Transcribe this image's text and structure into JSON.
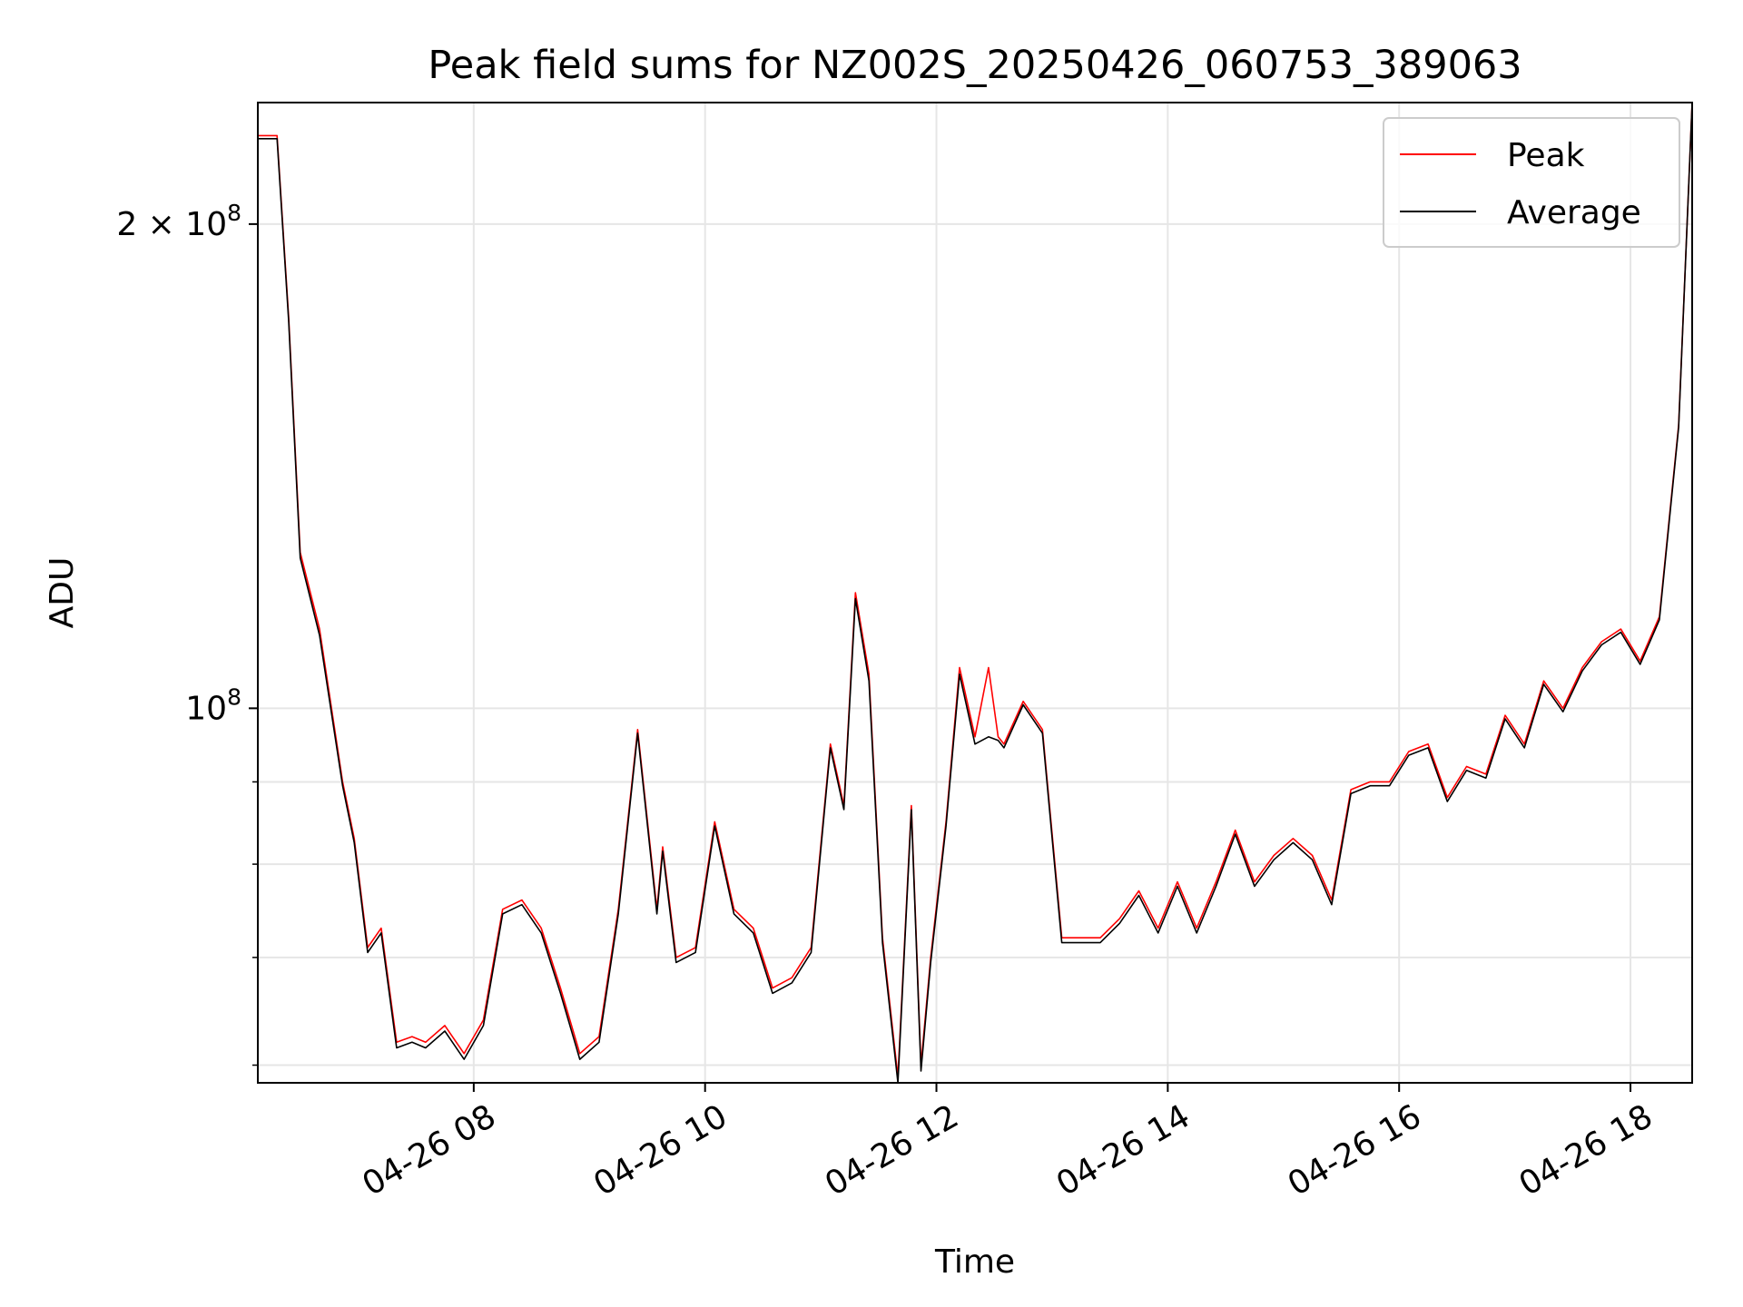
{
  "chart_data": {
    "type": "line",
    "title": "Peak field sums for NZ002S_20250426_060753_389063",
    "xlabel": "Time",
    "ylabel": "ADU",
    "x_axis_type": "time",
    "xlim": [
      "2025-04-26 06:08",
      "2025-04-26 18:32"
    ],
    "ylim": [
      58500000,
      238000000
    ],
    "y_scale": "log",
    "grid": true,
    "legend_position": "top-right",
    "x_ticks": [
      {
        "value": "2025-04-26 08:00",
        "label": "04-26 08"
      },
      {
        "value": "2025-04-26 10:00",
        "label": "04-26 10"
      },
      {
        "value": "2025-04-26 12:00",
        "label": "04-26 12"
      },
      {
        "value": "2025-04-26 14:00",
        "label": "04-26 14"
      },
      {
        "value": "2025-04-26 16:00",
        "label": "04-26 16"
      },
      {
        "value": "2025-04-26 18:00",
        "label": "04-26 18"
      }
    ],
    "y_major_ticks": [
      {
        "value": 100000000,
        "label_base": "10",
        "label_exp": "8"
      },
      {
        "value": 200000000,
        "label_base": "2 × 10",
        "label_exp": "8"
      }
    ],
    "y_minor_ticks": [
      60000000,
      70000000,
      80000000,
      90000000
    ],
    "series": [
      {
        "name": "Peak",
        "color": "#ff0000",
        "x": [
          "2025-04-26 06:08",
          "2025-04-26 06:18",
          "2025-04-26 06:24",
          "2025-04-26 06:30",
          "2025-04-26 06:40",
          "2025-04-26 06:52",
          "2025-04-26 06:58",
          "2025-04-26 07:05",
          "2025-04-26 07:12",
          "2025-04-26 07:20",
          "2025-04-26 07:28",
          "2025-04-26 07:35",
          "2025-04-26 07:45",
          "2025-04-26 07:55",
          "2025-04-26 08:05",
          "2025-04-26 08:15",
          "2025-04-26 08:25",
          "2025-04-26 08:35",
          "2025-04-26 08:45",
          "2025-04-26 08:55",
          "2025-04-26 09:05",
          "2025-04-26 09:15",
          "2025-04-26 09:25",
          "2025-04-26 09:35",
          "2025-04-26 09:38",
          "2025-04-26 09:45",
          "2025-04-26 09:55",
          "2025-04-26 10:05",
          "2025-04-26 10:15",
          "2025-04-26 10:25",
          "2025-04-26 10:35",
          "2025-04-26 10:45",
          "2025-04-26 10:55",
          "2025-04-26 11:05",
          "2025-04-26 11:12",
          "2025-04-26 11:18",
          "2025-04-26 11:25",
          "2025-04-26 11:32",
          "2025-04-26 11:40",
          "2025-04-26 11:47",
          "2025-04-26 11:52",
          "2025-04-26 11:57",
          "2025-04-26 12:05",
          "2025-04-26 12:12",
          "2025-04-26 12:20",
          "2025-04-26 12:27",
          "2025-04-26 12:32",
          "2025-04-26 12:35",
          "2025-04-26 12:45",
          "2025-04-26 12:55",
          "2025-04-26 13:05",
          "2025-04-26 13:15",
          "2025-04-26 13:25",
          "2025-04-26 13:35",
          "2025-04-26 13:45",
          "2025-04-26 13:55",
          "2025-04-26 14:05",
          "2025-04-26 14:15",
          "2025-04-26 14:25",
          "2025-04-26 14:35",
          "2025-04-26 14:45",
          "2025-04-26 14:55",
          "2025-04-26 15:05",
          "2025-04-26 15:15",
          "2025-04-26 15:25",
          "2025-04-26 15:35",
          "2025-04-26 15:45",
          "2025-04-26 15:55",
          "2025-04-26 16:05",
          "2025-04-26 16:15",
          "2025-04-26 16:25",
          "2025-04-26 16:35",
          "2025-04-26 16:45",
          "2025-04-26 16:55",
          "2025-04-26 17:05",
          "2025-04-26 17:15",
          "2025-04-26 17:25",
          "2025-04-26 17:35",
          "2025-04-26 17:45",
          "2025-04-26 17:55",
          "2025-04-26 18:05",
          "2025-04-26 18:15",
          "2025-04-26 18:25",
          "2025-04-26 18:32"
        ],
        "values": [
          227000000,
          227000000,
          175000000,
          125000000,
          112000000,
          90000000,
          83000000,
          71000000,
          73000000,
          62000000,
          62500000,
          62000000,
          63500000,
          61000000,
          64000000,
          75000000,
          76000000,
          73000000,
          67000000,
          61000000,
          62500000,
          75000000,
          97000000,
          75000000,
          82000000,
          70000000,
          71000000,
          85000000,
          75000000,
          73000000,
          67000000,
          68000000,
          71000000,
          95000000,
          87000000,
          118000000,
          105000000,
          72000000,
          59000000,
          87000000,
          60000000,
          70000000,
          85000000,
          106000000,
          96000000,
          106000000,
          96000000,
          95000000,
          101000000,
          97000000,
          72000000,
          72000000,
          72000000,
          74000000,
          77000000,
          73000000,
          78000000,
          73000000,
          78000000,
          84000000,
          78000000,
          81000000,
          83000000,
          81000000,
          76000000,
          89000000,
          90000000,
          90000000,
          94000000,
          95000000,
          88000000,
          92000000,
          91000000,
          99000000,
          95000000,
          104000000,
          100000000,
          106000000,
          110000000,
          112000000,
          107000000,
          114000000,
          150000000,
          238000000
        ]
      },
      {
        "name": "Average",
        "color": "#000000",
        "x": [
          "2025-04-26 06:08",
          "2025-04-26 06:18",
          "2025-04-26 06:24",
          "2025-04-26 06:30",
          "2025-04-26 06:40",
          "2025-04-26 06:52",
          "2025-04-26 06:58",
          "2025-04-26 07:05",
          "2025-04-26 07:12",
          "2025-04-26 07:20",
          "2025-04-26 07:28",
          "2025-04-26 07:35",
          "2025-04-26 07:45",
          "2025-04-26 07:55",
          "2025-04-26 08:05",
          "2025-04-26 08:15",
          "2025-04-26 08:25",
          "2025-04-26 08:35",
          "2025-04-26 08:45",
          "2025-04-26 08:55",
          "2025-04-26 09:05",
          "2025-04-26 09:15",
          "2025-04-26 09:25",
          "2025-04-26 09:35",
          "2025-04-26 09:38",
          "2025-04-26 09:45",
          "2025-04-26 09:55",
          "2025-04-26 10:05",
          "2025-04-26 10:15",
          "2025-04-26 10:25",
          "2025-04-26 10:35",
          "2025-04-26 10:45",
          "2025-04-26 10:55",
          "2025-04-26 11:05",
          "2025-04-26 11:12",
          "2025-04-26 11:18",
          "2025-04-26 11:25",
          "2025-04-26 11:32",
          "2025-04-26 11:40",
          "2025-04-26 11:47",
          "2025-04-26 11:52",
          "2025-04-26 11:57",
          "2025-04-26 12:05",
          "2025-04-26 12:12",
          "2025-04-26 12:20",
          "2025-04-26 12:27",
          "2025-04-26 12:32",
          "2025-04-26 12:35",
          "2025-04-26 12:45",
          "2025-04-26 12:55",
          "2025-04-26 13:05",
          "2025-04-26 13:15",
          "2025-04-26 13:25",
          "2025-04-26 13:35",
          "2025-04-26 13:45",
          "2025-04-26 13:55",
          "2025-04-26 14:05",
          "2025-04-26 14:15",
          "2025-04-26 14:25",
          "2025-04-26 14:35",
          "2025-04-26 14:45",
          "2025-04-26 14:55",
          "2025-04-26 15:05",
          "2025-04-26 15:15",
          "2025-04-26 15:25",
          "2025-04-26 15:35",
          "2025-04-26 15:45",
          "2025-04-26 15:55",
          "2025-04-26 16:05",
          "2025-04-26 16:15",
          "2025-04-26 16:25",
          "2025-04-26 16:35",
          "2025-04-26 16:45",
          "2025-04-26 16:55",
          "2025-04-26 17:05",
          "2025-04-26 17:15",
          "2025-04-26 17:25",
          "2025-04-26 17:35",
          "2025-04-26 17:45",
          "2025-04-26 17:55",
          "2025-04-26 18:05",
          "2025-04-26 18:15",
          "2025-04-26 18:25",
          "2025-04-26 18:32"
        ],
        "values": [
          226000000,
          226000000,
          174000000,
          124000000,
          111000000,
          89500000,
          82500000,
          70500000,
          72500000,
          61500000,
          62000000,
          61500000,
          63000000,
          60500000,
          63500000,
          74500000,
          75500000,
          72500000,
          66500000,
          60500000,
          62000000,
          74500000,
          96500000,
          74500000,
          81500000,
          69500000,
          70500000,
          84500000,
          74500000,
          72500000,
          66500000,
          67500000,
          70500000,
          94500000,
          86500000,
          117000000,
          104000000,
          71500000,
          58500000,
          86500000,
          59500000,
          69500000,
          84500000,
          105000000,
          95000000,
          96000000,
          95500000,
          94500000,
          100500000,
          96500000,
          71500000,
          71500000,
          71500000,
          73500000,
          76500000,
          72500000,
          77500000,
          72500000,
          77500000,
          83500000,
          77500000,
          80500000,
          82500000,
          80500000,
          75500000,
          88500000,
          89500000,
          89500000,
          93500000,
          94500000,
          87500000,
          91500000,
          90500000,
          98500000,
          94500000,
          103500000,
          99500000,
          105500000,
          109500000,
          111500000,
          106500000,
          113500000,
          149500000,
          238000000
        ]
      }
    ]
  }
}
